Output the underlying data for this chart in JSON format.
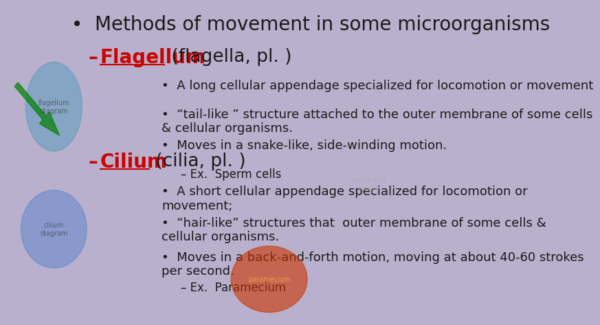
{
  "background_color": "#b8b0cc",
  "title": "Methods of movement in some microorganisms",
  "title_fontsize": 20,
  "title_color": "#1a1a1a",
  "flagellum_label": "Flagellum",
  "flagellum_suffix": " (flagella, pl. )",
  "flagellum_color": "#cc0000",
  "flagellum_fontsize": 20,
  "flagellum_bullets": [
    "A long cellular appendage specialized for locomotion or movement",
    "“tail-like ” structure attached to the outer membrane of some cells\n& cellular organisms.",
    "Moves in a snake-like, side-winding motion."
  ],
  "flagellum_example": "– Ex.  Sperm cells",
  "cilium_label": "Cilium",
  "cilium_suffix": " (cilia, pl. )",
  "cilium_color": "#cc0000",
  "cilium_fontsize": 20,
  "cilium_bullets": [
    "A short cellular appendage specialized for locomotion or\nmovement;",
    "“hair-like” structures that  outer membrane of some cells &\ncellular organisms.",
    "Moves in a back-and-forth motion, moving at about 40-60 strokes\nper second."
  ],
  "cilium_example": "– Ex.  Paramecium",
  "bullet_fontsize": 13,
  "example_fontsize": 12,
  "bullet_color": "#1a1a1a",
  "dash_color": "#cc0000"
}
